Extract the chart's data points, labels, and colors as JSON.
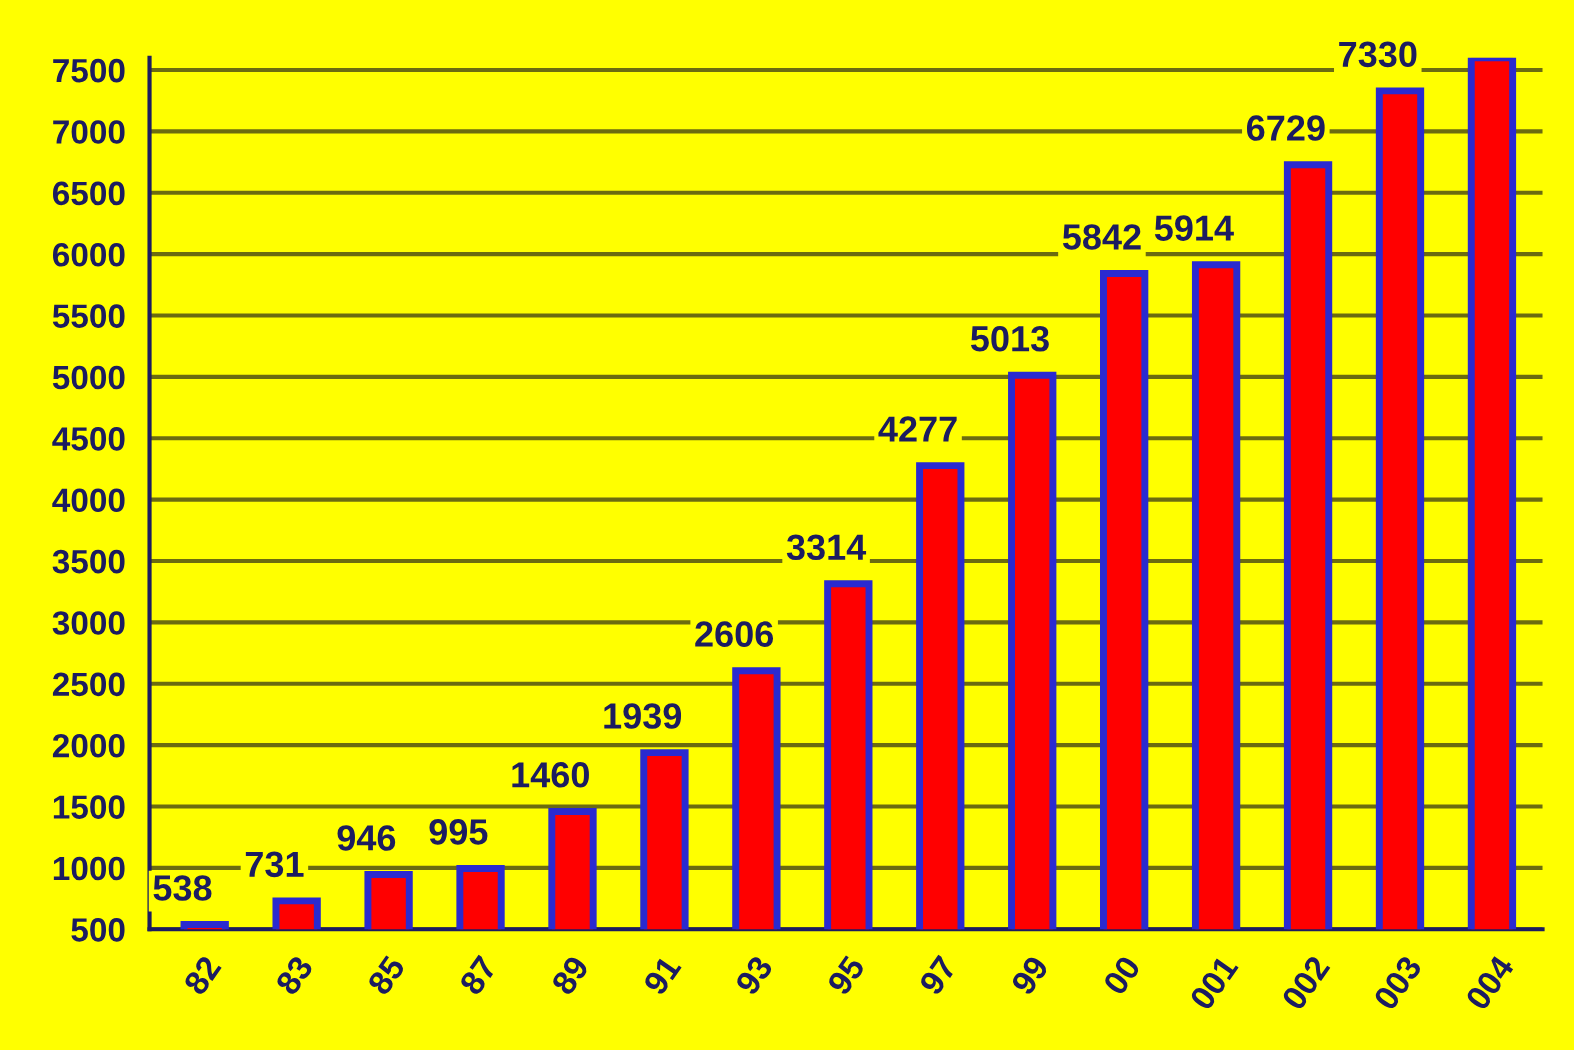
{
  "chart_data": {
    "type": "bar",
    "categories": [
      "82",
      "83",
      "85",
      "87",
      "89",
      "91",
      "93",
      "95",
      "97",
      "99",
      "00",
      "001",
      "002",
      "003",
      "004"
    ],
    "values": [
      538,
      731,
      946,
      995,
      1460,
      1939,
      2606,
      3314,
      4277,
      5013,
      5842,
      5914,
      6729,
      7330,
      7600
    ],
    "value_labels": [
      "538",
      "731",
      "946",
      "995",
      "1460",
      "1939",
      "2606",
      "3314",
      "4277",
      "5013",
      "5842",
      "5914",
      "6729",
      "7330",
      null
    ],
    "color": "#ff0000",
    "ylim": [
      500,
      7600
    ],
    "yticks": [
      500,
      1000,
      1500,
      2000,
      2500,
      3000,
      3500,
      4000,
      4500,
      5000,
      5500,
      6000,
      6500,
      7000,
      7500
    ],
    "grid": "y"
  }
}
